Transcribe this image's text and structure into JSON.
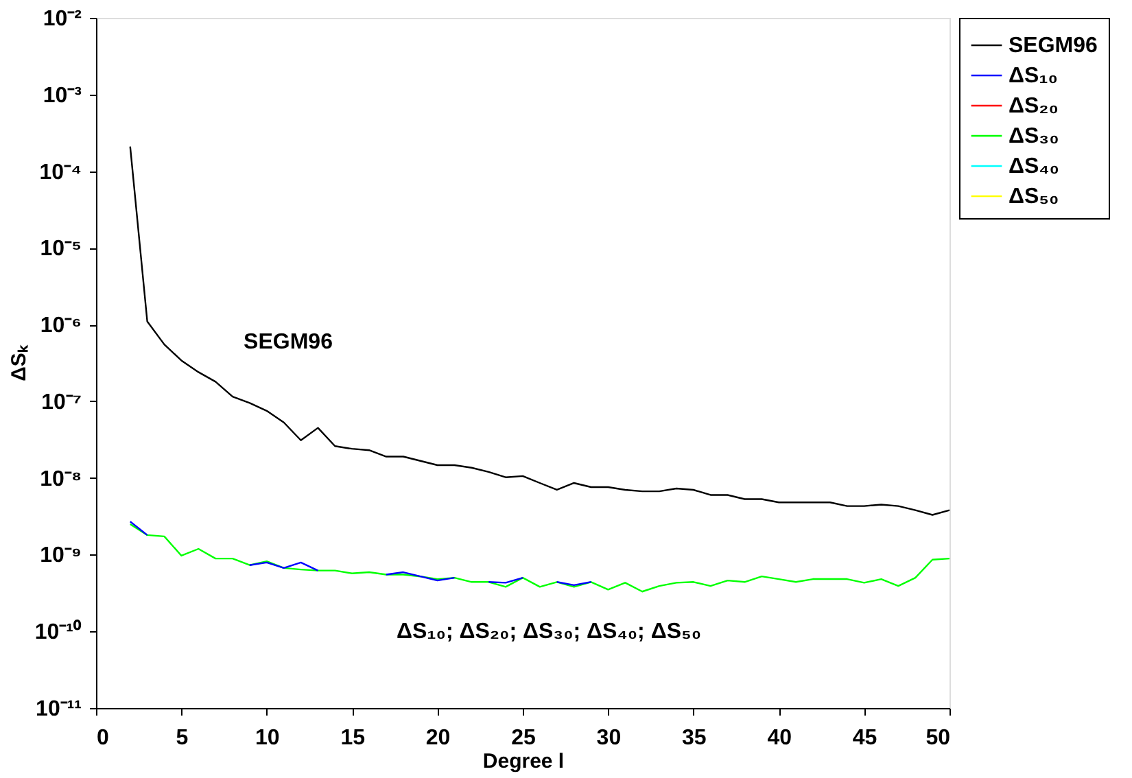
{
  "chart_data": {
    "type": "line",
    "xlabel": "Degree l",
    "ylabel": "ΔSₖ",
    "log": true,
    "x": [
      2,
      3,
      4,
      5,
      6,
      7,
      8,
      9,
      10,
      11,
      12,
      13,
      14,
      15,
      16,
      17,
      18,
      19,
      20,
      21,
      22,
      23,
      24,
      25,
      26,
      27,
      28,
      29,
      30,
      31,
      32,
      33,
      34,
      35,
      36,
      37,
      38,
      39,
      40,
      41,
      42,
      43,
      44,
      45,
      46,
      47,
      48,
      49,
      50
    ],
    "series": [
      {
        "name": "SEGM96",
        "color": "#000000",
        "values": [
          0.00021,
          1.1e-06,
          5.5e-07,
          3.4e-07,
          2.4e-07,
          1.8e-07,
          1.15e-07,
          9.5e-08,
          7.5e-08,
          5.3e-08,
          3.1e-08,
          4.5e-08,
          2.6e-08,
          2.4e-08,
          2.3e-08,
          1.9e-08,
          1.9e-08,
          1.67e-08,
          1.47e-08,
          1.47e-08,
          1.36e-08,
          1.2e-08,
          1.02e-08,
          1.06e-08,
          8.6e-09,
          7e-09,
          8.6e-09,
          7.6e-09,
          7.6e-09,
          7e-09,
          6.7e-09,
          6.7e-09,
          7.3e-09,
          7e-09,
          6e-09,
          6e-09,
          5.3e-09,
          5.3e-09,
          4.8e-09,
          4.8e-09,
          4.8e-09,
          4.8e-09,
          4.3e-09,
          4.3e-09,
          4.5e-09,
          4.3e-09,
          3.8e-09,
          3.3e-09,
          3.8e-09
        ]
      },
      {
        "name": "ΔS₁₀",
        "color": "#0000ff",
        "values": [
          2.7e-09,
          1.8e-09,
          null,
          null,
          null,
          null,
          null,
          7.3e-10,
          7.9e-10,
          6.7e-10,
          7.9e-10,
          6.2e-10,
          null,
          null,
          null,
          5.5e-10,
          5.9e-10,
          5.2e-10,
          4.6e-10,
          5e-10,
          null,
          4.4e-10,
          4.3e-10,
          5e-10,
          null,
          4.4e-10,
          4e-10,
          4.4e-10,
          null,
          null,
          null,
          null,
          null,
          null,
          null,
          null,
          null,
          null,
          null,
          null,
          null,
          null,
          null,
          null,
          null,
          null,
          null,
          null,
          null
        ]
      },
      {
        "name": "ΔS₂₀",
        "color": "#ff0000",
        "values": [
          null,
          null,
          null,
          null,
          null,
          null,
          null,
          null,
          null,
          null,
          null,
          null,
          null,
          null,
          null,
          null,
          null,
          null,
          null,
          null,
          null,
          null,
          null,
          null,
          null,
          null,
          null,
          null,
          null,
          null,
          null,
          null,
          null,
          null,
          null,
          null,
          null,
          null,
          null,
          null,
          null,
          null,
          null,
          null,
          null,
          null,
          null,
          null,
          null
        ]
      },
      {
        "name": "ΔS₃₀",
        "color": "#00ff00",
        "values": [
          2.5e-09,
          1.8e-09,
          1.73e-09,
          9.7e-10,
          1.19e-09,
          8.9e-10,
          8.9e-10,
          7.3e-10,
          8.2e-10,
          6.7e-10,
          6.4e-10,
          6.2e-10,
          6.2e-10,
          5.7e-10,
          5.9e-10,
          5.5e-10,
          5.5e-10,
          5.2e-10,
          4.8e-10,
          5e-10,
          4.4e-10,
          4.4e-10,
          3.8e-10,
          5e-10,
          3.8e-10,
          4.4e-10,
          3.8e-10,
          4.4e-10,
          3.5e-10,
          4.3e-10,
          3.3e-10,
          3.9e-10,
          4.3e-10,
          4.4e-10,
          3.9e-10,
          4.6e-10,
          4.4e-10,
          5.2e-10,
          4.8e-10,
          4.4e-10,
          4.8e-10,
          4.8e-10,
          4.8e-10,
          4.3e-10,
          4.8e-10,
          3.9e-10,
          5e-10,
          8.6e-10,
          8.9e-10
        ]
      },
      {
        "name": "ΔS₄₀",
        "color": "#00ffff",
        "values": [
          null,
          null,
          null,
          null,
          null,
          null,
          null,
          null,
          null,
          null,
          null,
          null,
          null,
          null,
          null,
          null,
          null,
          null,
          null,
          null,
          null,
          null,
          null,
          null,
          null,
          null,
          null,
          null,
          null,
          null,
          null,
          null,
          null,
          null,
          null,
          null,
          null,
          null,
          null,
          null,
          null,
          null,
          null,
          null,
          null,
          null,
          null,
          null,
          null
        ]
      },
      {
        "name": "ΔS₅₀",
        "color": "#ffff00",
        "values": [
          null,
          null,
          null,
          null,
          null,
          null,
          null,
          null,
          null,
          null,
          null,
          null,
          null,
          null,
          null,
          null,
          null,
          null,
          null,
          null,
          null,
          null,
          null,
          null,
          null,
          null,
          null,
          null,
          null,
          null,
          null,
          null,
          null,
          null,
          null,
          null,
          null,
          null,
          null,
          null,
          null,
          null,
          null,
          null,
          null,
          null,
          null,
          null,
          null
        ]
      }
    ],
    "xlim": [
      0,
      50
    ],
    "xticks": [
      0,
      5,
      10,
      15,
      20,
      25,
      30,
      35,
      40,
      45,
      50
    ],
    "ylim": [
      1e-11,
      0.01
    ],
    "yticks": [
      {
        "value": 1e-11,
        "label": "10⁻¹¹"
      },
      {
        "value": 1e-10,
        "label": "10⁻¹⁰"
      },
      {
        "value": 1e-09,
        "label": "10⁻⁹"
      },
      {
        "value": 1e-08,
        "label": "10⁻⁸"
      },
      {
        "value": 1e-07,
        "label": "10⁻⁷"
      },
      {
        "value": 1e-06,
        "label": "10⁻⁶"
      },
      {
        "value": 1e-05,
        "label": "10⁻⁵"
      },
      {
        "value": 0.0001,
        "label": "10⁻⁴"
      },
      {
        "value": 0.001,
        "label": "10⁻³"
      },
      {
        "value": 0.01,
        "label": "10⁻²"
      }
    ],
    "annotations": [
      "SEGM96",
      "ΔS₁₀; ΔS₂₀; ΔS₃₀; ΔS₄₀; ΔS₅₀"
    ],
    "grid": false,
    "legend": "right",
    "line_style": "solid"
  }
}
